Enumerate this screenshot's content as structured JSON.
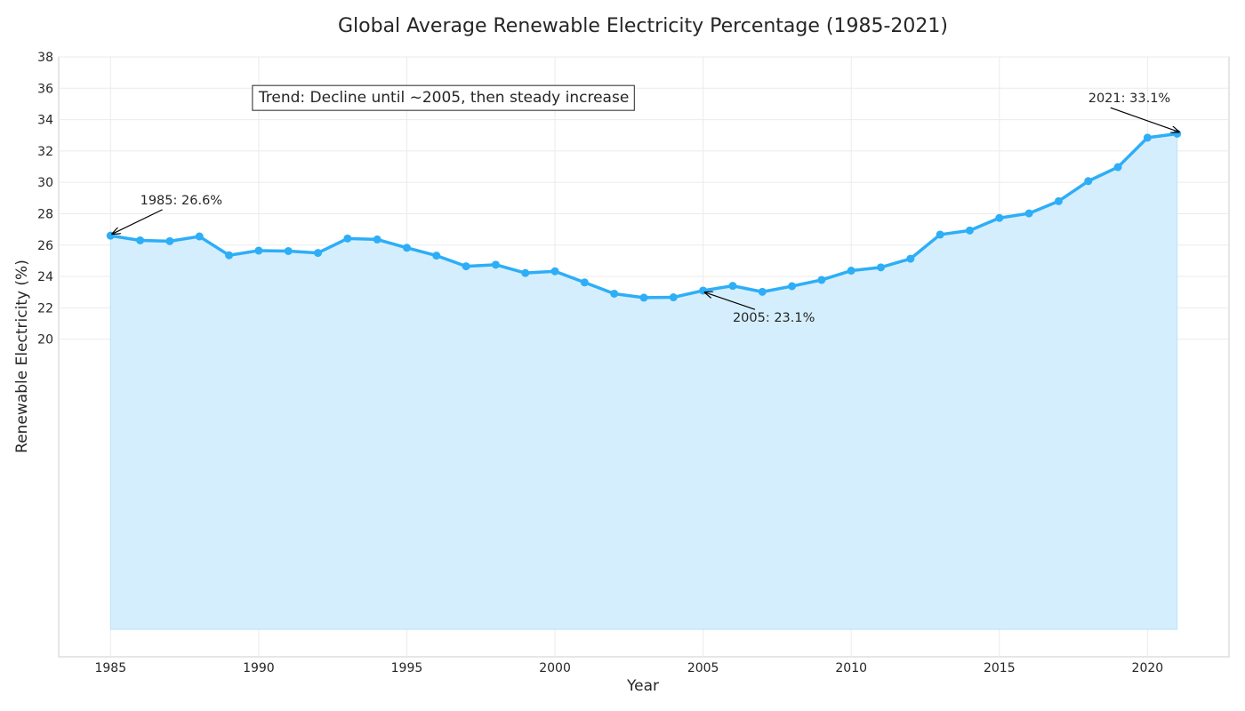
{
  "chart_data": {
    "type": "area",
    "title": "Global Average Renewable Electricity Percentage (1985-2021)",
    "xlabel": "Year",
    "ylabel": "Renewable Electricity (%)",
    "xlim": [
      1983.25,
      2022.75
    ],
    "ylim": [
      -0.25,
      38
    ],
    "x_ticks": [
      1985,
      1990,
      1995,
      2000,
      2005,
      2010,
      2015,
      2020
    ],
    "y_ticks": [
      20,
      22,
      24,
      26,
      28,
      30,
      32,
      34,
      36,
      38
    ],
    "grid": true,
    "fill_baseline": 1.5,
    "series": [
      {
        "x": [
          1985,
          1986,
          1987,
          1988,
          1989,
          1990,
          1991,
          1992,
          1993,
          1994,
          1995,
          1996,
          1997,
          1998,
          1999,
          2000,
          2001,
          2002,
          2003,
          2004,
          2005,
          2006,
          2007,
          2008,
          2009,
          2010,
          2011,
          2012,
          2013,
          2014,
          2015,
          2016,
          2017,
          2018,
          2019,
          2020,
          2021
        ],
        "values": [
          26.6,
          26.3,
          26.25,
          26.55,
          25.35,
          25.65,
          25.62,
          25.5,
          26.42,
          26.36,
          25.83,
          25.33,
          24.65,
          24.75,
          24.22,
          24.33,
          23.62,
          22.9,
          22.65,
          22.67,
          23.1,
          23.4,
          23.02,
          23.38,
          23.78,
          24.37,
          24.58,
          25.13,
          26.67,
          26.93,
          27.73,
          28.02,
          28.8,
          30.08,
          30.97,
          32.85,
          33.1
        ],
        "color": "#2daef7",
        "fill_color": "#d3eefd"
      }
    ],
    "annotations": [
      {
        "text": "1985: 26.6%",
        "x": 1985,
        "y": 26.6,
        "text_x": 1986,
        "text_y": 28.6
      },
      {
        "text": "2005: 23.1%",
        "x": 2005,
        "y": 23.1,
        "text_x": 2006,
        "text_y": 21.1
      },
      {
        "text": "2021: 33.1%",
        "x": 2021,
        "y": 33.1,
        "text_x": 2018,
        "text_y": 35.1
      }
    ],
    "text_box": "Trend: Decline until ~2005, then steady increase"
  }
}
